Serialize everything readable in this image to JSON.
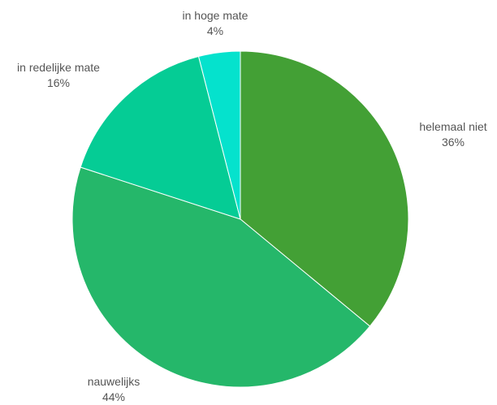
{
  "chart_data": {
    "type": "pie",
    "slices": [
      {
        "label": "helemaal niet",
        "value": 36,
        "pct_label": "36%",
        "color": "#43a035"
      },
      {
        "label": "nauwelijks",
        "value": 44,
        "pct_label": "44%",
        "color": "#25b76a"
      },
      {
        "label": "in redelijke mate",
        "value": 16,
        "pct_label": "16%",
        "color": "#05cc95"
      },
      {
        "label": "in hoge mate",
        "value": 4,
        "pct_label": "4%",
        "color": "#05e2cd"
      }
    ],
    "start_angle": "12 o'clock",
    "direction": "clockwise",
    "legend": "none"
  }
}
